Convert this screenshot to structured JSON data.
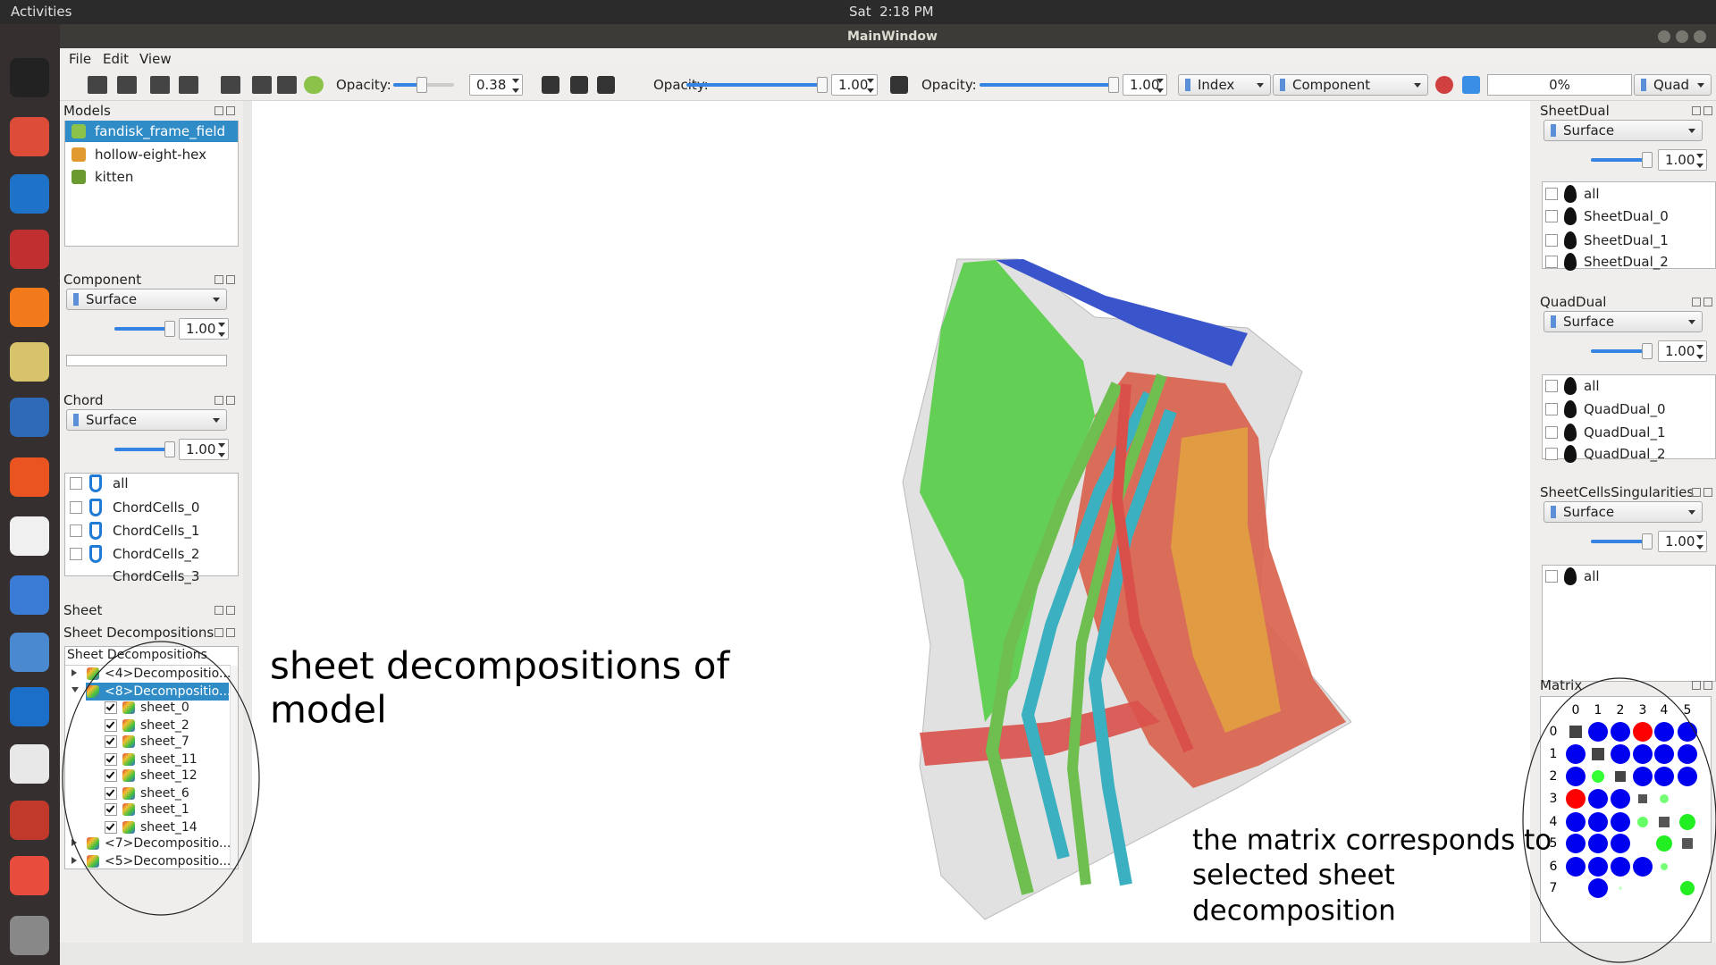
{
  "top_bar": {
    "activities": "Activities",
    "clock": "Sat  2:18 PM"
  },
  "window": {
    "title": "MainWindow"
  },
  "menu": [
    "File",
    "Edit",
    "View"
  ],
  "toolbar": {
    "opacity_1": {
      "label": "Opacity:",
      "value": "0.38"
    },
    "opacity_2": {
      "label": "Opacity:",
      "value": "1.00"
    },
    "opacity_3": {
      "label": "Opacity:",
      "value": "1.00"
    },
    "index": "Index",
    "component": "Component",
    "progress": "0%",
    "mode": "Quad"
  },
  "left_panel": {
    "models": {
      "title": "Models",
      "items": [
        "fandisk_frame_field",
        "hollow-eight-hex",
        "kitten"
      ]
    },
    "component": {
      "title": "Component",
      "combo": "Surface",
      "opacity": "1.00"
    },
    "chord": {
      "title": "Chord",
      "combo": "Surface",
      "opacity": "1.00",
      "items": [
        "all",
        "ChordCells_0",
        "ChordCells_1",
        "ChordCells_2",
        "ChordCells_3"
      ]
    },
    "sheet": {
      "title": "Sheet"
    },
    "sheet_decompositions": {
      "title": "Sheet Decompositions",
      "header": "Sheet Decompositions",
      "rows": [
        "<4>Decompositio...",
        "<8>Decompositio...",
        "sheet_0",
        "sheet_2",
        "sheet_7",
        "sheet_11",
        "sheet_12",
        "sheet_6",
        "sheet_1",
        "sheet_14",
        "<7>Decompositio...",
        "<5>Decompositio..."
      ]
    }
  },
  "right_panel": {
    "sheet_dual": {
      "title": "SheetDual",
      "combo": "Surface",
      "opacity": "1.00",
      "items": [
        "all",
        "SheetDual_0",
        "SheetDual_1",
        "SheetDual_2"
      ]
    },
    "quad_dual": {
      "title": "QuadDual",
      "combo": "Surface",
      "opacity": "1.00",
      "items": [
        "all",
        "QuadDual_0",
        "QuadDual_1",
        "QuadDual_2"
      ]
    },
    "singularities": {
      "title": "SheetCellsSingularities",
      "combo": "Surface",
      "opacity": "1.00",
      "items": [
        "all"
      ]
    },
    "matrix": {
      "title": "Matrix",
      "columns": [
        0,
        1,
        2,
        3,
        4,
        5
      ],
      "rows": [
        0,
        1,
        2,
        3,
        4,
        5,
        6,
        7
      ]
    }
  },
  "annotations": {
    "left": [
      "sheet decompositions of",
      "model"
    ],
    "right": [
      "the matrix corresponds to",
      "selected sheet",
      "decomposition"
    ]
  }
}
